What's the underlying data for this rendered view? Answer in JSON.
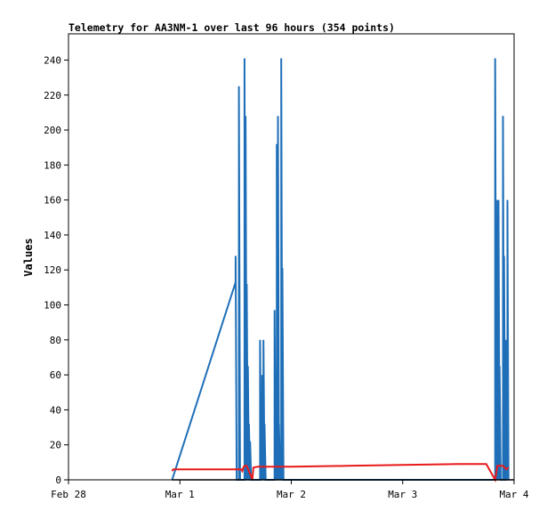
{
  "chart_data": {
    "type": "line",
    "title": "Telemetry for AA3NM-1 over last 96 hours (354 points)",
    "xlabel": "",
    "ylabel": "Values",
    "ylim": [
      0,
      255
    ],
    "yticks": [
      0,
      20,
      40,
      60,
      80,
      100,
      120,
      140,
      160,
      180,
      200,
      220,
      240
    ],
    "xlim": [
      0,
      4
    ],
    "xticks": [
      {
        "x": 0,
        "label": "Feb 28"
      },
      {
        "x": 1,
        "label": "Mar 1"
      },
      {
        "x": 2,
        "label": "Mar 2"
      },
      {
        "x": 3,
        "label": "Mar 3"
      },
      {
        "x": 4,
        "label": "Mar 4"
      }
    ],
    "grid": false,
    "legend": "none",
    "colors": {
      "blue": "#1f6fb8",
      "red": "#e8191a",
      "black": "#000000"
    },
    "series": [
      {
        "color": "#1f6fb8",
        "points": [
          [
            0.93,
            0
          ],
          [
            1.5,
            113
          ],
          [
            1.5,
            128
          ],
          [
            1.51,
            0
          ],
          [
            1.53,
            0
          ],
          [
            1.53,
            225
          ],
          [
            1.54,
            0
          ],
          [
            1.58,
            0
          ],
          [
            1.58,
            241
          ],
          [
            1.59,
            0
          ],
          [
            1.59,
            208
          ],
          [
            1.6,
            0
          ],
          [
            1.6,
            112
          ],
          [
            1.61,
            0
          ],
          [
            1.61,
            65
          ],
          [
            1.62,
            0
          ],
          [
            1.62,
            32
          ],
          [
            1.63,
            0
          ],
          [
            1.63,
            22
          ],
          [
            1.64,
            0
          ],
          [
            1.72,
            0
          ],
          [
            1.72,
            80
          ],
          [
            1.73,
            0
          ],
          [
            1.73,
            20
          ],
          [
            1.74,
            0
          ],
          [
            1.74,
            60
          ],
          [
            1.75,
            0
          ],
          [
            1.75,
            80
          ],
          [
            1.76,
            0
          ],
          [
            1.76,
            32
          ],
          [
            1.77,
            0
          ],
          [
            1.85,
            0
          ],
          [
            1.85,
            97
          ],
          [
            1.86,
            0
          ],
          [
            1.86,
            24
          ],
          [
            1.87,
            0
          ],
          [
            1.87,
            192
          ],
          [
            1.88,
            0
          ],
          [
            1.88,
            208
          ],
          [
            1.89,
            0
          ],
          [
            1.89,
            32
          ],
          [
            1.9,
            0
          ],
          [
            1.9,
            16
          ],
          [
            1.91,
            0
          ],
          [
            1.91,
            241
          ],
          [
            1.92,
            0
          ],
          [
            1.92,
            121
          ],
          [
            1.93,
            0
          ],
          [
            3.83,
            0
          ],
          [
            3.83,
            241
          ],
          [
            3.84,
            0
          ],
          [
            3.84,
            112
          ],
          [
            3.85,
            0
          ],
          [
            3.85,
            160
          ],
          [
            3.86,
            0
          ],
          [
            3.86,
            160
          ],
          [
            3.87,
            0
          ],
          [
            3.87,
            65
          ],
          [
            3.88,
            0
          ],
          [
            3.9,
            0
          ],
          [
            3.9,
            208
          ],
          [
            3.91,
            0
          ],
          [
            3.91,
            128
          ],
          [
            3.92,
            0
          ],
          [
            3.93,
            0
          ],
          [
            3.93,
            80
          ],
          [
            3.94,
            0
          ],
          [
            3.94,
            160
          ],
          [
            3.95,
            0
          ]
        ]
      },
      {
        "color": "#e8191a",
        "points": [
          [
            0.93,
            5
          ],
          [
            0.94,
            6
          ],
          [
            1.55,
            6
          ],
          [
            1.56,
            5
          ],
          [
            1.57,
            7
          ],
          [
            1.58,
            8
          ],
          [
            1.6,
            8
          ],
          [
            1.62,
            5
          ],
          [
            1.64,
            2
          ],
          [
            1.65,
            0
          ],
          [
            1.66,
            7
          ],
          [
            1.7,
            7.5
          ],
          [
            2.0,
            7.5
          ],
          [
            2.5,
            8
          ],
          [
            3.0,
            8.5
          ],
          [
            3.5,
            9
          ],
          [
            3.75,
            9
          ],
          [
            3.83,
            0
          ],
          [
            3.85,
            8
          ],
          [
            3.9,
            8
          ],
          [
            3.93,
            6
          ],
          [
            3.95,
            7
          ]
        ]
      },
      {
        "color": "#000000",
        "points": [
          [
            0.93,
            0
          ],
          [
            4.0,
            0
          ]
        ]
      }
    ]
  }
}
